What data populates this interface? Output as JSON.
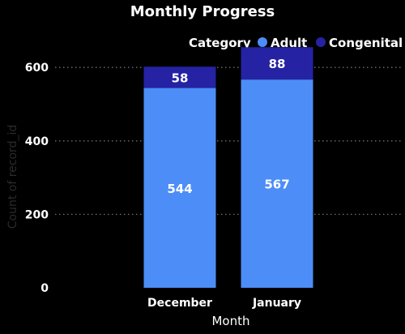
{
  "chart_data": {
    "type": "bar",
    "stacked": true,
    "title": "Monthly Progress",
    "xlabel": "Month",
    "ylabel": "Count of record_id",
    "categories": [
      "December",
      "January"
    ],
    "series": [
      {
        "name": "Adult",
        "values": [
          544,
          567
        ],
        "color": "#4d8df7"
      },
      {
        "name": "Congenital",
        "values": [
          58,
          88
        ],
        "color": "#2522a3"
      }
    ],
    "ylim": [
      0,
      660
    ],
    "yticks": [
      0,
      200,
      400,
      600
    ],
    "grid": true,
    "legend": {
      "title": "Category",
      "position": "top-right"
    }
  },
  "colors": {
    "background": "#000000",
    "text": "#ffffff",
    "axis_label": "#2b2b2b",
    "grid": "#6f6f6f"
  }
}
